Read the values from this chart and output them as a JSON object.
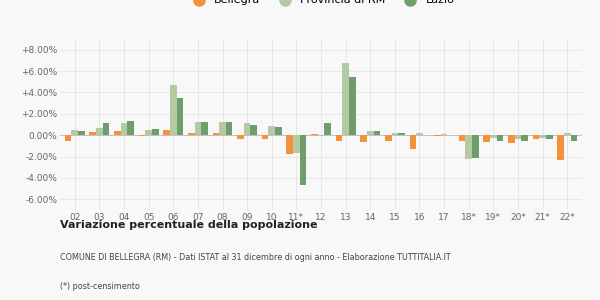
{
  "years": [
    "02",
    "03",
    "04",
    "05",
    "06",
    "07",
    "08",
    "09",
    "10",
    "11*",
    "12",
    "13",
    "14",
    "15",
    "16",
    "17",
    "18*",
    "19*",
    "20*",
    "21*",
    "22*"
  ],
  "bellegra": [
    -0.5,
    0.3,
    0.4,
    -0.1,
    0.5,
    0.2,
    0.2,
    -0.4,
    -0.4,
    -1.8,
    0.1,
    -0.5,
    -0.6,
    -0.5,
    -1.3,
    -0.1,
    -0.5,
    -0.6,
    -0.7,
    -0.4,
    -2.3
  ],
  "provincia_rm": [
    0.5,
    0.7,
    1.1,
    0.5,
    4.7,
    1.2,
    1.2,
    1.1,
    0.9,
    -1.7,
    0.0,
    6.8,
    0.4,
    0.2,
    0.2,
    0.1,
    -2.2,
    -0.3,
    -0.4,
    -0.3,
    0.2
  ],
  "lazio": [
    0.4,
    1.1,
    1.3,
    0.6,
    3.5,
    1.2,
    1.2,
    1.0,
    0.8,
    -4.7,
    1.1,
    5.4,
    0.35,
    0.2,
    0.0,
    0.0,
    -2.1,
    -0.5,
    -0.5,
    -0.4,
    -0.5
  ],
  "color_bellegra": "#f4923c",
  "color_provincia": "#b5c9a2",
  "color_lazio": "#6e9e6e",
  "ylim_min": -7.0,
  "ylim_max": 9.0,
  "yticks": [
    -6.0,
    -4.0,
    -2.0,
    0.0,
    2.0,
    4.0,
    6.0,
    8.0
  ],
  "ytick_labels": [
    "-6.00%",
    "-4.00%",
    "-2.00%",
    "0.00%",
    "+2.00%",
    "+4.00%",
    "+6.00%",
    "+8.00%"
  ],
  "title_bold": "Variazione percentuale della popolazione",
  "subtitle": "COMUNE DI BELLEGRA (RM) - Dati ISTAT al 31 dicembre di ogni anno - Elaborazione TUTTITALIA.IT",
  "footnote": "(*) post-censimento",
  "legend_labels": [
    "Bellegra",
    "Provincia di RM",
    "Lazio"
  ],
  "background_color": "#f8f8f8",
  "grid_color": "#e0e0e0"
}
